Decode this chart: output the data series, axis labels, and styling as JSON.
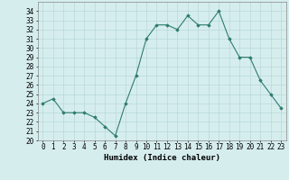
{
  "x": [
    0,
    1,
    2,
    3,
    4,
    5,
    6,
    7,
    8,
    9,
    10,
    11,
    12,
    13,
    14,
    15,
    16,
    17,
    18,
    19,
    20,
    21,
    22,
    23
  ],
  "y": [
    24,
    24.5,
    23,
    23,
    23,
    22.5,
    21.5,
    20.5,
    24,
    27,
    31,
    32.5,
    32.5,
    32,
    33.5,
    32.5,
    32.5,
    34,
    31,
    29,
    29,
    26.5,
    25,
    23.5
  ],
  "line_color": "#2e7d6e",
  "marker": "D",
  "marker_size": 1.8,
  "bg_color": "#d6edee",
  "grid_color": "#b8d8d8",
  "xlabel": "Humidex (Indice chaleur)",
  "ylim": [
    20,
    35
  ],
  "xlim": [
    -0.5,
    23.5
  ],
  "yticks": [
    20,
    21,
    22,
    23,
    24,
    25,
    26,
    27,
    28,
    29,
    30,
    31,
    32,
    33,
    34
  ],
  "xticks": [
    0,
    1,
    2,
    3,
    4,
    5,
    6,
    7,
    8,
    9,
    10,
    11,
    12,
    13,
    14,
    15,
    16,
    17,
    18,
    19,
    20,
    21,
    22,
    23
  ],
  "label_fontsize": 6.5,
  "tick_fontsize": 5.5
}
